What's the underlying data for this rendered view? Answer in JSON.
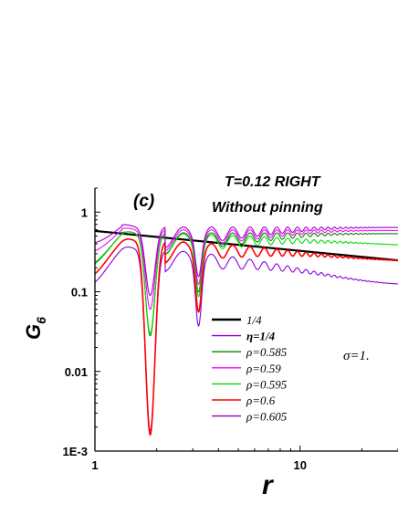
{
  "chart_data": {
    "type": "line",
    "panel_label": "(c)",
    "title_line1": "T=0.12 RIGHT",
    "title_line2": "Without pinning",
    "xlabel": "r",
    "ylabel": "G",
    "ylabel_subscript": "6",
    "x_scale": "log",
    "y_scale": "log",
    "xlim": [
      1,
      30
    ],
    "ylim": [
      0.001,
      2
    ],
    "x_ticks": [
      {
        "value": 1,
        "label": "1"
      },
      {
        "value": 10,
        "label": "10"
      }
    ],
    "y_ticks": [
      {
        "value": 0.001,
        "label": "1E-3"
      },
      {
        "value": 0.01,
        "label": "0.01"
      },
      {
        "value": 0.1,
        "label": "0.1"
      },
      {
        "value": 1,
        "label": "1"
      }
    ],
    "grid": false,
    "legend_position": "center-right",
    "annotation": "σ=1.",
    "series": [
      {
        "name": "1/4",
        "color": "#000000",
        "kind": "power",
        "amp": 0.58,
        "exponent": -0.25
      },
      {
        "name": "η=1/4",
        "color": "#8800dd",
        "kind": "osc",
        "start": 0.1,
        "plateau": 0.12,
        "peak": 0.36,
        "decay": 0.22,
        "dip1": 0.0018,
        "dip2": 0.06
      },
      {
        "name": "ρ=0.585",
        "color": "#008800",
        "kind": "osc",
        "start": 0.19,
        "plateau": 0.5,
        "peak": 0.55,
        "decay": 0.02,
        "dip1": 0.028,
        "dip2": 0.16
      },
      {
        "name": "ρ=0.59",
        "color": "#ff00ff",
        "kind": "osc",
        "start": 0.29,
        "plateau": 0.56,
        "peak": 0.6,
        "decay": 0.02,
        "dip1": 0.06,
        "dip2": 0.2
      },
      {
        "name": "ρ=0.595",
        "color": "#00dd00",
        "kind": "osc",
        "start": 0.18,
        "plateau": 0.37,
        "peak": 0.55,
        "decay": 0.13,
        "dip1": 0.03,
        "dip2": 0.14
      },
      {
        "name": "ρ=0.6",
        "color": "#ff0000",
        "kind": "osc",
        "start": 0.13,
        "plateau": 0.24,
        "peak": 0.45,
        "decay": 0.19,
        "dip1": 0.0016,
        "dip2": 0.09
      },
      {
        "name": "ρ=0.605",
        "color": "#9900cc",
        "kind": "osc",
        "start": 0.38,
        "plateau": 0.62,
        "peak": 0.65,
        "decay": 0.015,
        "dip1": 0.09,
        "dip2": 0.25
      }
    ]
  }
}
